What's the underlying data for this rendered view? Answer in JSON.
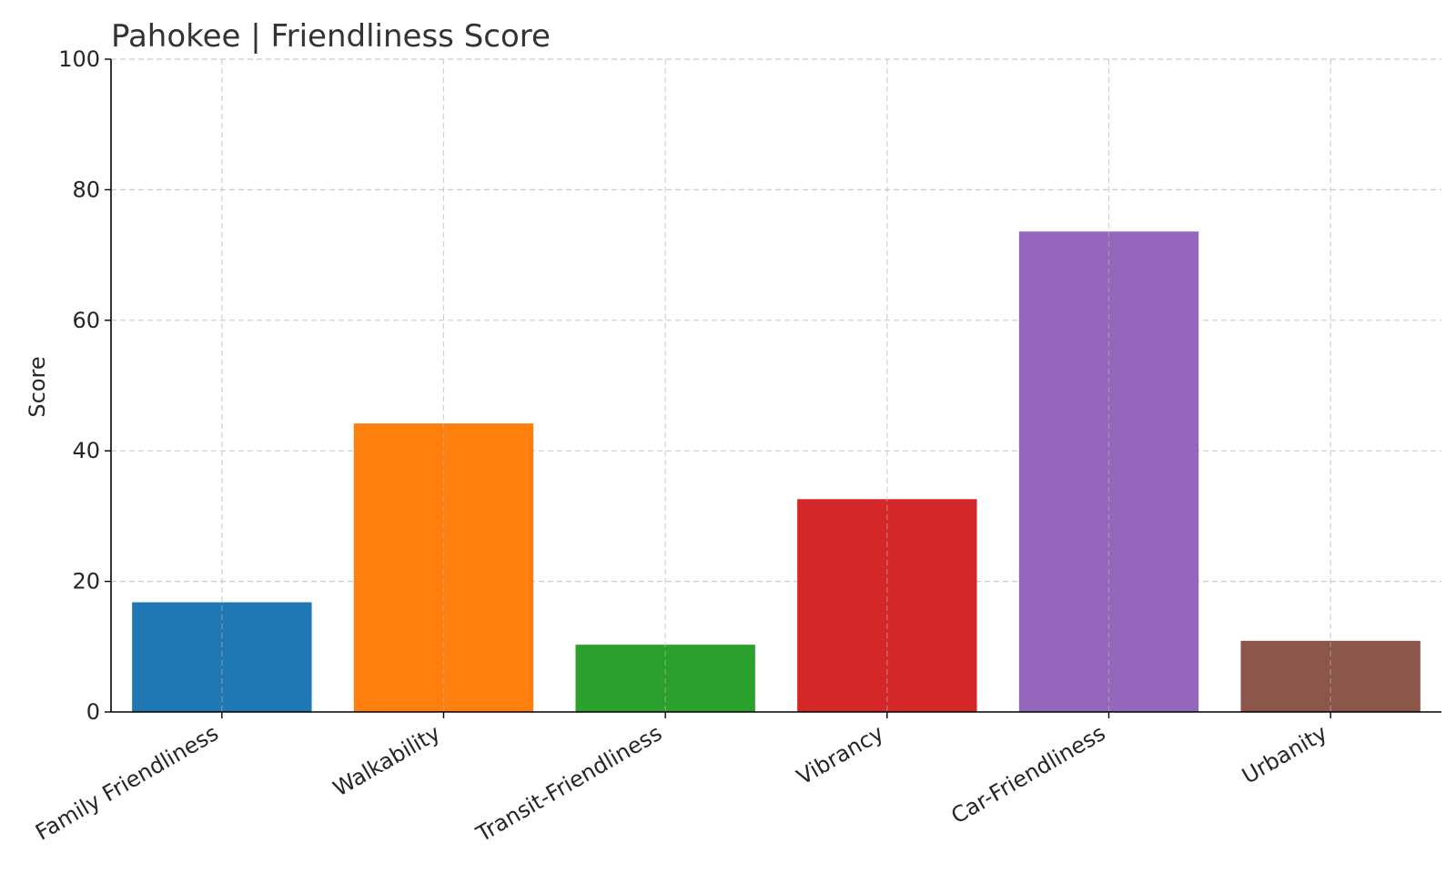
{
  "chart_data": {
    "type": "bar",
    "title": "Pahokee |  Friendliness Score",
    "xlabel": "",
    "ylabel": "Score",
    "ylim": [
      0,
      100
    ],
    "yticks": [
      0,
      20,
      40,
      60,
      80,
      100
    ],
    "grid": true,
    "categories": [
      "Family Friendliness",
      "Walkability",
      "Transit-Friendliness",
      "Vibrancy",
      "Car-Friendliness",
      "Urbanity"
    ],
    "values": [
      16.8,
      44.2,
      10.3,
      32.6,
      73.6,
      10.9
    ],
    "colors": [
      "#1f77b4",
      "#ff7f0e",
      "#2ca02c",
      "#d62728",
      "#9467bd",
      "#8c564b"
    ]
  }
}
